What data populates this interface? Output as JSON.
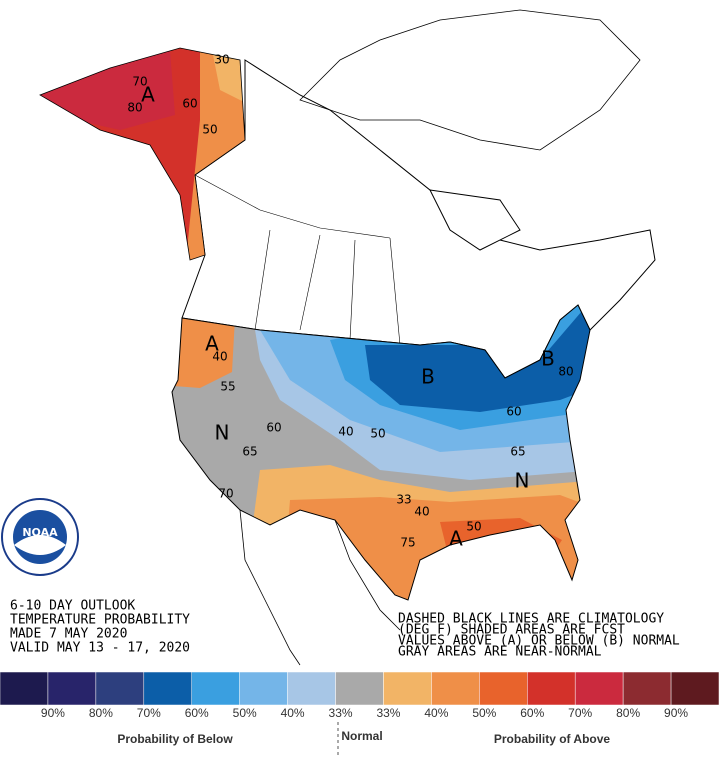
{
  "outlook": {
    "lines": [
      "6-10 DAY OUTLOOK",
      "TEMPERATURE PROBABILITY",
      "MADE  7 MAY 2020",
      "VALID  MAY 13 - 17, 2020"
    ]
  },
  "notes": {
    "lines": [
      "DASHED BLACK LINES ARE CLIMATOLOGY",
      "(DEG F) SHADED AREAS ARE FCST",
      "VALUES ABOVE (A) OR BELOW (B) NORMAL",
      "GRAY AREAS ARE NEAR-NORMAL"
    ]
  },
  "logo": {
    "text": "NOAA"
  },
  "map_labels": [
    "A",
    "80",
    "70",
    "60",
    "50",
    "30",
    "A",
    "40",
    "55",
    "N",
    "60",
    "65",
    "70",
    "B",
    "B",
    "40",
    "50",
    "60",
    "65",
    "80",
    "N",
    "33",
    "40",
    "A",
    "50",
    "75"
  ],
  "legend": {
    "colors": [
      "#1d1a4e",
      "#28246a",
      "#2d3f7e",
      "#0c5ea8",
      "#3a9fe0",
      "#74b5e8",
      "#a7c6e6",
      "#a9a9a9",
      "#f2b466",
      "#ef8f48",
      "#e8632c",
      "#d3312a",
      "#cb2a3e",
      "#8c2b30",
      "#5e1a1f"
    ],
    "labels": [
      "90%",
      "80%",
      "70%",
      "60%",
      "50%",
      "40%",
      "33%",
      "33%",
      "40%",
      "50%",
      "60%",
      "70%",
      "80%",
      "90%"
    ],
    "below": "Probability of Below",
    "normal": "Normal",
    "above": "Probability of Above"
  }
}
